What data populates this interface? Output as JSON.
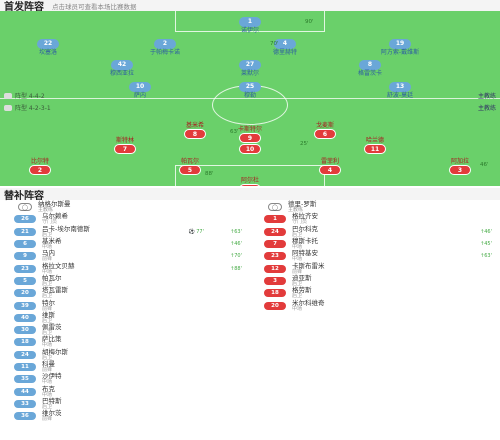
{
  "starting": {
    "title": "首发阵容",
    "subtitle": "点击球员可查看本场比赛数据"
  },
  "subs_section": {
    "title": "替补阵容"
  },
  "home": {
    "formation": "阵型 4-4-2",
    "coach": "主教练",
    "color": "#6aa7d8",
    "players": [
      {
        "num": "1",
        "name": "诺伊尔"
      },
      {
        "num": "22",
        "name": "坎塞洛"
      },
      {
        "num": "2",
        "name": "于帕梅卡诺"
      },
      {
        "num": "4",
        "name": "德里赫特"
      },
      {
        "num": "19",
        "name": "阿方索-戴维斯"
      },
      {
        "num": "42",
        "name": "穆西亚拉"
      },
      {
        "num": "27",
        "name": "莱默尔"
      },
      {
        "num": "8",
        "name": "格雷茨卡"
      },
      {
        "num": "10",
        "name": "萨内"
      },
      {
        "num": "25",
        "name": "穆勒"
      },
      {
        "num": "13",
        "name": "舒波-莫廷"
      }
    ]
  },
  "away": {
    "formation": "阵型 4-2-3-1",
    "coach": "主教练",
    "color": "#e23b3b",
    "players": [
      {
        "num": "1",
        "name": "阿尔杜"
      },
      {
        "num": "2",
        "name": "比尔特"
      },
      {
        "num": "5",
        "name": "帕瓦尔"
      },
      {
        "num": "4",
        "name": "雷菲利"
      },
      {
        "num": "3",
        "name": "阿加拉"
      },
      {
        "num": "8",
        "name": "基米希"
      },
      {
        "num": "6",
        "name": "戈麦斯"
      },
      {
        "num": "7",
        "name": "斯特林"
      },
      {
        "num": "10",
        "name": "布兰特"
      },
      {
        "num": "11",
        "name": "哈兰德"
      },
      {
        "num": "9",
        "name": "卡斯特尔"
      }
    ],
    "tags": [
      "25'",
      "88'",
      "46'",
      "70'",
      "90'",
      "63'"
    ]
  },
  "sub_home": [
    {
      "num": "",
      "name": "纳格尔斯曼",
      "pos": "主教练",
      "coach": true
    },
    {
      "num": "26",
      "name": "乌尔赖希",
      "pos": "守门员",
      "ev": ""
    },
    {
      "num": "21",
      "name": "吕卡-埃尔南德斯",
      "pos": "后卫",
      "ev": "↑63'",
      "ev2": "⚽ 77'"
    },
    {
      "num": "6",
      "name": "基米希",
      "pos": "中场",
      "ev": "↑46'"
    },
    {
      "num": "9",
      "name": "马内",
      "pos": "前锋",
      "ev": "↑70'"
    },
    {
      "num": "23",
      "name": "格拉文贝赫",
      "pos": "中场",
      "ev": "↑88'"
    },
    {
      "num": "5",
      "name": "帕瓦尔",
      "pos": "后卫",
      "ev": ""
    },
    {
      "num": "20",
      "name": "塔瓦雷斯",
      "pos": "后卫",
      "ev": ""
    },
    {
      "num": "39",
      "name": "特尔",
      "pos": "前锋",
      "ev": ""
    },
    {
      "num": "40",
      "name": "维斯",
      "pos": "后卫",
      "ev": ""
    },
    {
      "num": "30",
      "name": "佩雷茨",
      "pos": "后卫",
      "ev": ""
    },
    {
      "num": "18",
      "name": "萨比策",
      "pos": "中场",
      "ev": ""
    },
    {
      "num": "24",
      "name": "胡梅尔斯",
      "pos": "后卫",
      "ev": ""
    },
    {
      "num": "11",
      "name": "科曼",
      "pos": "前锋",
      "ev": ""
    },
    {
      "num": "35",
      "name": "沙伊特",
      "pos": "中场",
      "ev": ""
    },
    {
      "num": "44",
      "name": "布克",
      "pos": "中场",
      "ev": ""
    },
    {
      "num": "33",
      "name": "巴特斯",
      "pos": "后卫",
      "ev": ""
    },
    {
      "num": "36",
      "name": "维尔茨",
      "pos": "前锋",
      "ev": ""
    }
  ],
  "sub_away": [
    {
      "num": "",
      "name": "德里-罗斯",
      "pos": "主教练",
      "coach": true
    },
    {
      "num": "1",
      "name": "格拉齐安",
      "pos": "守门员",
      "ev": ""
    },
    {
      "num": "24",
      "name": "巴尔科克",
      "pos": "后卫",
      "ev": "↑46'"
    },
    {
      "num": "7",
      "name": "穆斯卡托",
      "pos": "中场",
      "ev": "↑45'"
    },
    {
      "num": "23",
      "name": "阿特基安",
      "pos": "中场",
      "ev": "↑63'"
    },
    {
      "num": "12",
      "name": "卡斯布雷米",
      "pos": "前锋",
      "ev": ""
    },
    {
      "num": "3",
      "name": "迪亚斯",
      "pos": "后卫",
      "ev": ""
    },
    {
      "num": "18",
      "name": "格劳斯",
      "pos": "后卫",
      "ev": ""
    },
    {
      "num": "20",
      "name": "米尔科维奇",
      "pos": "中场",
      "ev": ""
    }
  ]
}
